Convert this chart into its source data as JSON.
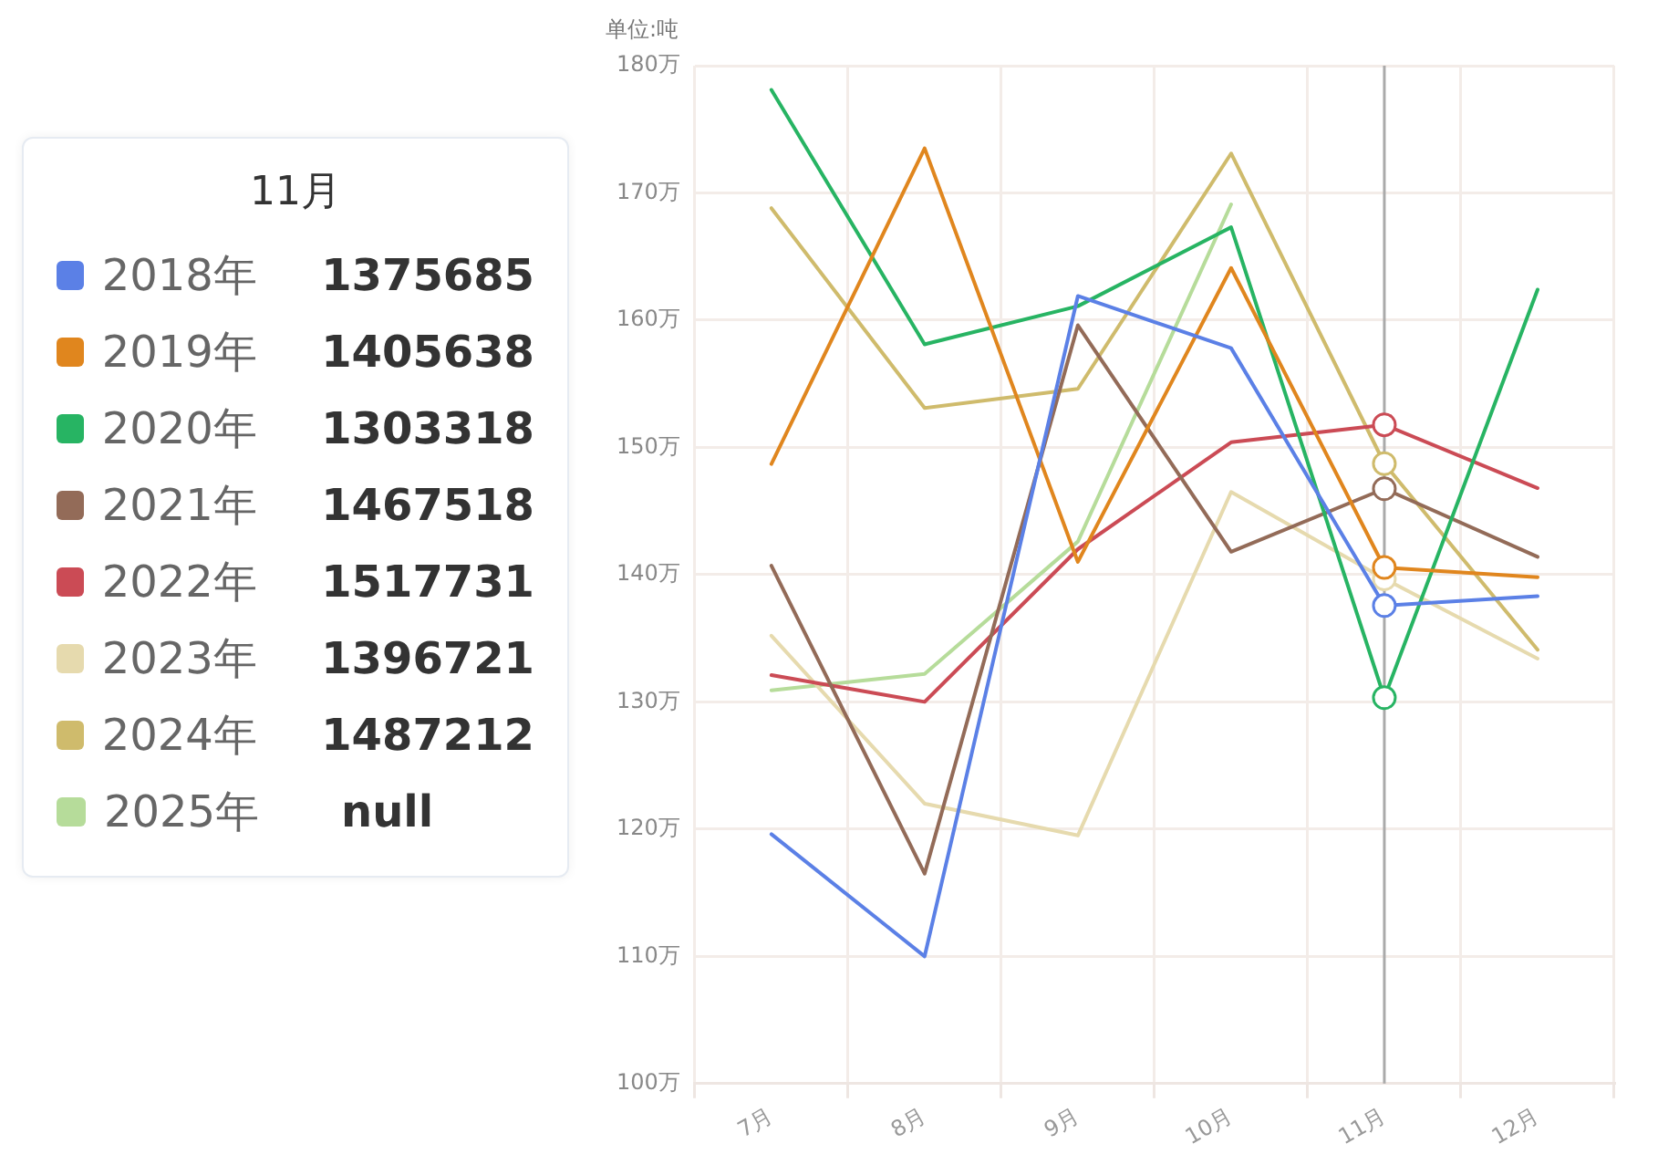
{
  "chart_data": {
    "type": "line",
    "ylabel": "单位:吨",
    "legend_title": "11月",
    "categories": [
      "7月",
      "8月",
      "9月",
      "10月",
      "11月",
      "12月"
    ],
    "series": [
      {
        "name": "2018年",
        "color": "#5b80e6",
        "values": [
          119.6,
          110.0,
          161.9,
          157.8,
          137.5685,
          138.3
        ]
      },
      {
        "name": "2019年",
        "color": "#e0861e",
        "values": [
          148.7,
          173.5,
          141.0,
          164.1,
          140.5638,
          139.8
        ]
      },
      {
        "name": "2020年",
        "color": "#27b463",
        "values": [
          178.1,
          158.1,
          161.1,
          167.3,
          130.3318,
          162.4
        ]
      },
      {
        "name": "2021年",
        "color": "#936b58",
        "values": [
          140.7,
          116.5,
          159.6,
          141.8,
          146.7518,
          141.4
        ]
      },
      {
        "name": "2022年",
        "color": "#cb4b55",
        "values": [
          132.1,
          130.0,
          142.0,
          150.4,
          151.7731,
          146.8
        ]
      },
      {
        "name": "2023年",
        "color": "#e6daae",
        "values": [
          135.2,
          122.0,
          119.5,
          146.5,
          139.6721,
          133.4
        ]
      },
      {
        "name": "2024年",
        "color": "#cfbb6c",
        "values": [
          168.8,
          153.1,
          154.6,
          173.1,
          148.7212,
          134.1
        ]
      },
      {
        "name": "2025年",
        "color": "#b6dc9a",
        "values": [
          130.9,
          132.2,
          142.6,
          169.1,
          null,
          null
        ]
      }
    ],
    "annotations": [
      "1375685",
      "1405638",
      "1303318",
      "1467518",
      "1517731",
      "1396721",
      "1487212",
      "null"
    ],
    "ylim": [
      100,
      180
    ],
    "yticks": [
      {
        "value": 100,
        "label": "100万"
      },
      {
        "value": 110,
        "label": "110万"
      },
      {
        "value": 120,
        "label": "120万"
      },
      {
        "value": 130,
        "label": "130万"
      },
      {
        "value": 140,
        "label": "140万"
      },
      {
        "value": 150,
        "label": "150万"
      },
      {
        "value": 160,
        "label": "160万"
      },
      {
        "value": 170,
        "label": "170万"
      },
      {
        "value": 180,
        "label": "180万"
      }
    ],
    "ref_lines": [
      {
        "axis": "x",
        "value": "11月",
        "color": "#aaaaaa"
      }
    ],
    "grid": true,
    "legend": "left",
    "line_style": "solid"
  }
}
